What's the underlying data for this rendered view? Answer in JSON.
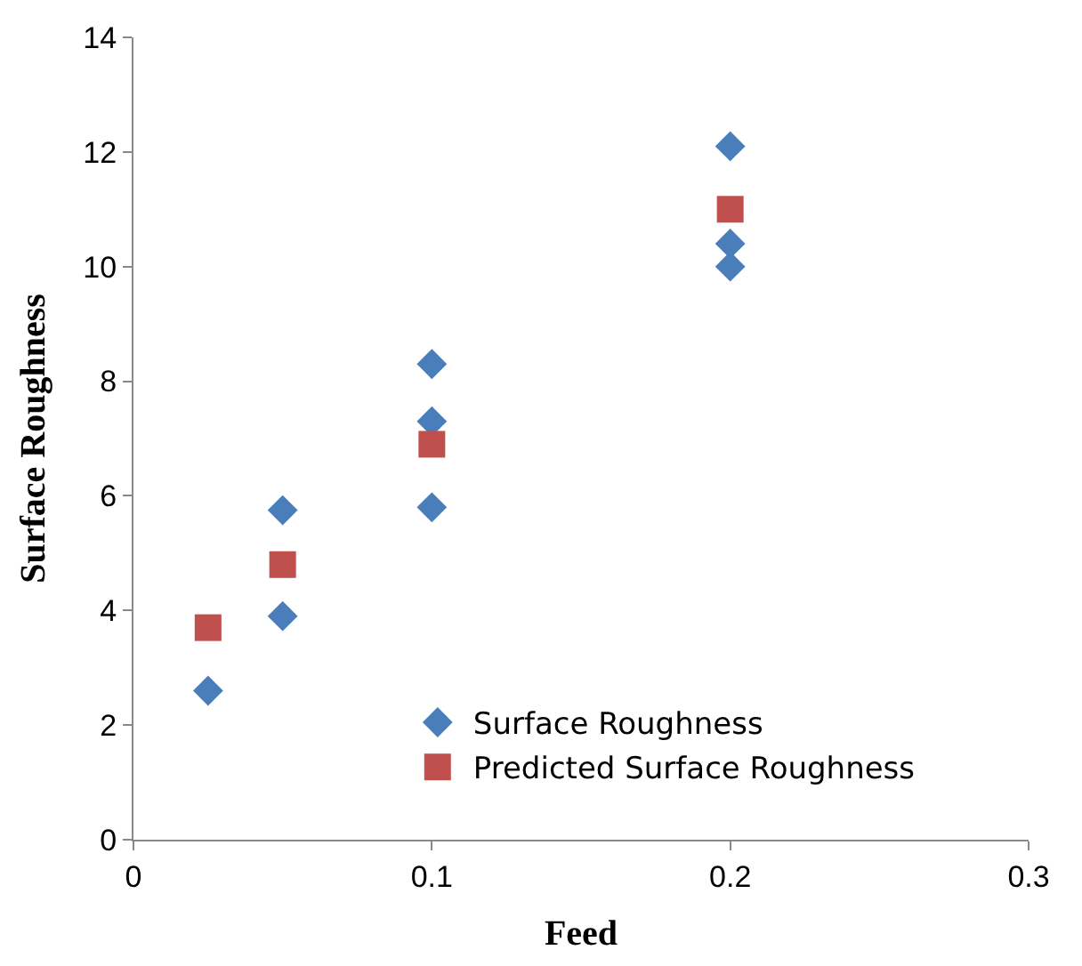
{
  "chart_data": {
    "type": "scatter",
    "xlabel": "Feed",
    "ylabel": "Surface Roughness",
    "xlim": [
      0,
      0.3
    ],
    "xticks": [
      0,
      0.1,
      0.2,
      0.3
    ],
    "ylim": [
      0,
      14
    ],
    "yticks": [
      0,
      2,
      4,
      6,
      8,
      10,
      12,
      14
    ],
    "legend": "bottom right",
    "series": [
      {
        "name": "Surface Roughness",
        "color": "#4a7ebb",
        "marker": "diamond",
        "x": [
          0.025,
          0.05,
          0.05,
          0.1,
          0.1,
          0.1,
          0.2,
          0.2,
          0.2
        ],
        "values": [
          2.6,
          5.75,
          3.9,
          8.3,
          7.3,
          5.8,
          12.1,
          10.4,
          10.0
        ]
      },
      {
        "name": "Predicted Surface Roughness",
        "color": "#c0504d",
        "marker": "square",
        "x": [
          0.025,
          0.05,
          0.1,
          0.2
        ],
        "values": [
          3.7,
          4.8,
          6.9,
          11.0
        ]
      }
    ]
  }
}
